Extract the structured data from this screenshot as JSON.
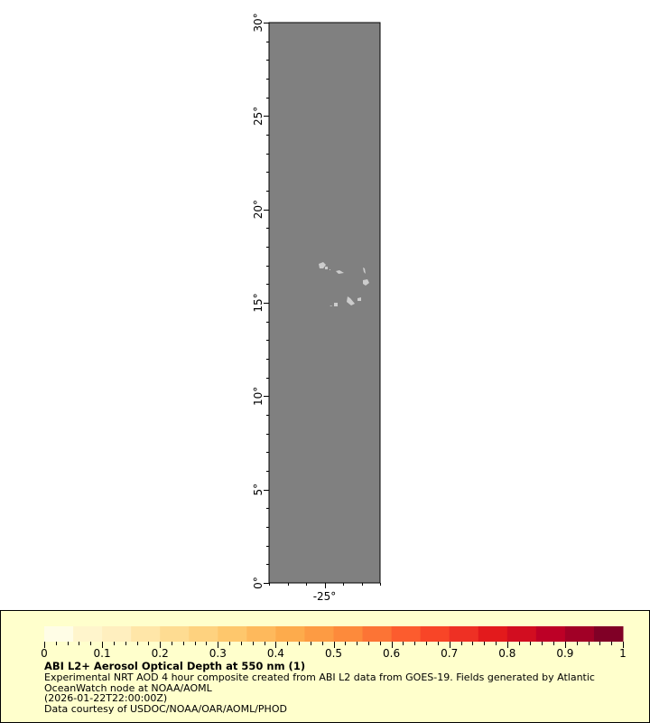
{
  "map": {
    "lat_range": [
      0,
      30
    ],
    "lon_range": [
      -28,
      -22
    ],
    "lat_ticks": [
      "0°",
      "5°",
      "10°",
      "15°",
      "20°",
      "25°",
      "30°"
    ],
    "lat_values": [
      0,
      5,
      10,
      15,
      20,
      25,
      30
    ],
    "lon_ticks": [
      "-25°"
    ],
    "lon_values": [
      -25
    ],
    "ocean_color": "#808080",
    "land_color": "#cccccc"
  },
  "legend": {
    "colorbar_ticks": [
      "0",
      "0.1",
      "0.2",
      "0.3",
      "0.4",
      "0.5",
      "0.6",
      "0.7",
      "0.8",
      "0.9",
      "1"
    ],
    "colorbar_range": [
      0,
      1
    ],
    "colors": [
      "#fffde6",
      "#fff5cc",
      "#ffefbf",
      "#ffe6a8",
      "#fedc92",
      "#fed27f",
      "#fec76c",
      "#feb95c",
      "#fdab4c",
      "#fd9b43",
      "#fd8a3b",
      "#fc7435",
      "#fc5c2e",
      "#f84527",
      "#ee3024",
      "#e31a1c",
      "#d20d20",
      "#bd0026",
      "#a10026",
      "#800026"
    ],
    "title": "ABI L2+ Aerosol Optical Depth at 550 nm (1)",
    "line1": "Experimental NRT AOD 4 hour composite created from ABI L2 data from GOES-19. Fields generated by Atlantic",
    "line2": "OceanWatch node at NOAA/AOML",
    "line3": "(2026-01-22T22:00:00Z)",
    "line4": "Data courtesy of USDOC/NOAA/OAR/AOML/PHOD"
  }
}
